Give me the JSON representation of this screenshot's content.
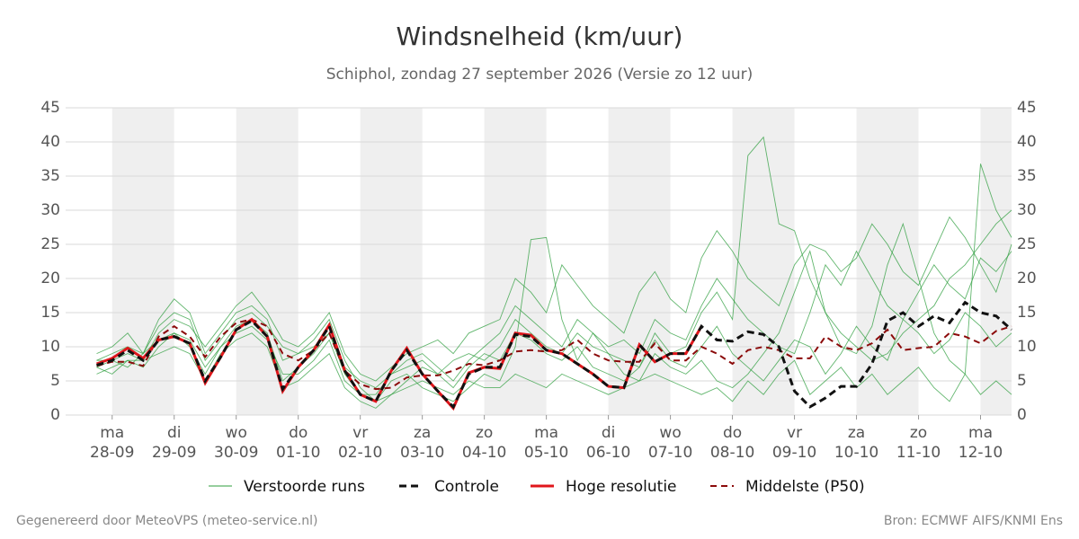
{
  "chart_data": {
    "type": "line",
    "title": "Windsnelheid (km/uur)",
    "subtitle": "Schiphol, zondag 27 september 2026 (Versie zo 12 uur)",
    "x": [
      -0.25,
      0,
      0.25,
      0.5,
      0.75,
      1,
      1.25,
      1.5,
      1.75,
      2,
      2.25,
      2.5,
      2.75,
      3,
      3.25,
      3.5,
      3.75,
      4,
      4.25,
      4.5,
      4.75,
      5,
      5.25,
      5.5,
      5.75,
      6,
      6.25,
      6.5,
      6.75,
      7,
      7.25,
      7.5,
      7.75,
      8,
      8.25,
      8.5,
      8.75,
      9,
      9.25,
      9.5,
      9.75,
      10,
      10.25,
      10.5,
      10.75,
      11,
      11.25,
      11.5,
      11.75,
      12,
      12.25,
      12.5,
      12.75,
      13,
      13.25,
      13.5,
      13.75,
      14,
      14.25,
      14.5
    ],
    "xlim": [
      -0.75,
      14.5
    ],
    "xticks": [
      {
        "value": 0,
        "label": "ma"
      },
      {
        "value": 1,
        "label": "di"
      },
      {
        "value": 2,
        "label": "wo"
      },
      {
        "value": 3,
        "label": "do"
      },
      {
        "value": 4,
        "label": "vr"
      },
      {
        "value": 5,
        "label": "za"
      },
      {
        "value": 6,
        "label": "zo"
      },
      {
        "value": 7,
        "label": "ma"
      },
      {
        "value": 8,
        "label": "di"
      },
      {
        "value": 9,
        "label": "wo"
      },
      {
        "value": 10,
        "label": "do"
      },
      {
        "value": 11,
        "label": "vr"
      },
      {
        "value": 12,
        "label": "za"
      },
      {
        "value": 13,
        "label": "zo"
      },
      {
        "value": 14,
        "label": "ma"
      }
    ],
    "xtick_dates": [
      "28-09",
      "29-09",
      "30-09",
      "01-10",
      "02-10",
      "03-10",
      "04-10",
      "05-10",
      "06-10",
      "07-10",
      "08-10",
      "09-10",
      "10-10",
      "11-10",
      "12-10"
    ],
    "ylim": [
      0,
      45
    ],
    "yticks": [
      0,
      5,
      10,
      15,
      20,
      25,
      30,
      35,
      40,
      45
    ],
    "grid": true,
    "ensemble": {
      "name": "Verstoorde runs",
      "color": "#2e9e3e",
      "runs": [
        [
          8,
          9,
          10,
          9,
          14,
          17,
          15,
          9,
          12,
          15,
          16,
          14,
          8,
          9,
          11,
          14,
          8,
          4,
          2,
          3,
          5,
          7,
          6,
          8,
          9,
          8,
          10,
          14,
          12,
          10,
          9,
          12,
          10,
          9,
          8,
          7,
          12,
          9,
          10,
          15,
          18,
          14,
          38,
          40.7,
          28,
          27,
          20,
          15,
          12,
          10,
          8,
          9,
          12,
          14,
          16,
          20,
          22,
          25,
          28,
          30
        ],
        [
          7,
          6,
          8,
          7,
          10,
          12,
          10,
          6,
          10,
          12,
          13,
          11,
          6,
          6,
          8,
          11,
          5,
          3,
          2,
          5,
          6,
          4,
          3,
          2,
          4,
          6,
          5,
          10,
          25.7,
          26,
          14,
          8,
          12,
          9,
          6,
          5,
          9,
          7,
          6,
          8,
          5,
          4,
          6,
          9,
          12,
          18,
          24,
          15,
          10,
          9,
          13,
          22,
          28,
          20,
          12,
          8,
          6,
          36.8,
          30,
          26
        ],
        [
          9,
          10,
          12,
          9,
          13,
          15,
          14,
          8,
          11,
          14,
          15,
          13,
          10,
          9,
          10,
          12,
          7,
          5,
          4,
          6,
          8,
          9,
          7,
          5,
          8,
          10,
          12,
          16,
          14,
          12,
          10,
          14,
          12,
          10,
          11,
          9,
          14,
          12,
          11,
          16,
          20,
          17,
          14,
          12,
          10,
          9,
          15,
          22,
          19,
          24,
          20,
          16,
          14,
          18,
          22,
          19,
          17,
          23,
          21,
          24
        ],
        [
          6,
          7,
          8,
          8,
          9,
          10,
          9,
          5,
          9,
          11,
          12,
          10,
          4,
          5,
          7,
          9,
          4,
          2,
          1,
          3,
          4,
          5,
          4,
          3,
          5,
          4,
          4,
          6,
          5,
          4,
          6,
          5,
          4,
          3,
          4,
          5,
          6,
          5,
          4,
          3,
          4,
          2,
          5,
          3,
          6,
          8,
          3,
          5,
          7,
          4,
          6,
          3,
          5,
          7,
          4,
          2,
          6,
          3,
          5,
          3
        ],
        [
          8,
          8,
          9,
          8,
          12,
          14,
          13,
          10,
          13,
          16,
          18,
          15,
          11,
          10,
          12,
          15,
          9,
          6,
          5,
          7,
          9,
          10,
          11,
          9,
          12,
          13,
          14,
          20,
          18,
          15,
          22,
          19,
          16,
          14,
          12,
          18,
          21,
          17,
          15,
          23,
          27,
          24,
          20,
          18,
          16,
          22,
          25,
          24,
          21,
          23,
          28,
          25,
          21,
          19,
          24,
          29,
          26,
          22,
          18,
          25
        ],
        [
          7,
          8,
          7,
          9,
          11,
          12,
          11,
          7,
          10,
          13,
          14,
          12,
          5,
          7,
          9,
          12,
          6,
          3,
          3,
          6,
          7,
          8,
          6,
          4,
          7,
          9,
          8,
          12,
          11,
          9,
          8,
          10,
          7,
          6,
          5,
          7,
          11,
          8,
          7,
          10,
          13,
          9,
          7,
          5,
          8,
          11,
          10,
          6,
          9,
          13,
          10,
          8,
          14,
          12,
          9,
          11,
          15,
          13,
          10,
          12
        ]
      ]
    },
    "series": [
      {
        "name": "Controle",
        "color": "#111111",
        "dash": "8 5",
        "width": 3,
        "values": [
          7.3,
          8,
          9.5,
          8,
          11,
          11.5,
          10.5,
          5,
          8.5,
          12.5,
          13.8,
          11.5,
          3.8,
          7,
          9.5,
          13,
          6.5,
          3,
          2,
          6.5,
          9.5,
          6,
          3.5,
          1.2,
          6,
          7,
          7,
          11.8,
          11.5,
          9.5,
          9,
          7.5,
          6,
          4.2,
          4,
          10.3,
          7.8,
          9,
          9,
          13,
          11,
          10.8,
          12.2,
          11.8,
          10,
          3.5,
          1.2,
          2.5,
          4.2,
          4.2,
          7.5,
          13.8,
          15,
          13,
          14.5,
          13.5,
          16.5,
          15,
          14.5,
          12.5
        ]
      },
      {
        "name": "Hoge resolutie",
        "color": "#e0161b",
        "dash": "",
        "width": 3,
        "values": [
          7.5,
          8.3,
          9.8,
          8.3,
          11,
          11.5,
          10.5,
          4.7,
          8.5,
          12.5,
          14,
          11.5,
          3.5,
          7,
          9.5,
          13.2,
          6.5,
          3,
          2,
          6.5,
          9.8,
          6,
          3.5,
          1,
          6.2,
          7,
          6.8,
          12,
          11.7,
          9.5,
          9,
          7.5,
          6,
          4.2,
          4,
          10.3,
          7.8,
          9,
          9,
          13,
          null,
          null,
          null,
          null,
          null,
          null,
          null,
          null,
          null,
          null,
          null,
          null,
          null,
          null,
          null,
          null,
          null,
          null,
          null,
          null
        ]
      },
      {
        "name": "Middelste (P50)",
        "color": "#8b0a0a",
        "dash": "7 5",
        "width": 2,
        "values": [
          7.2,
          7.8,
          7.8,
          7.2,
          11.5,
          13,
          11.5,
          8.5,
          11.5,
          13.5,
          14,
          13,
          9,
          8,
          9.5,
          12,
          6.5,
          4.5,
          3.8,
          4,
          5.5,
          5.8,
          5.8,
          6.5,
          7.5,
          7.3,
          8,
          9.3,
          9.5,
          9.3,
          9.5,
          11,
          9,
          8,
          7.8,
          7.8,
          10.5,
          8,
          8,
          10,
          9,
          7.5,
          9.5,
          10,
          9.5,
          8.3,
          8.3,
          11.5,
          10,
          9.5,
          10.5,
          12.5,
          9.5,
          9.8,
          10,
          12,
          11.5,
          10.5,
          12.3,
          13
        ]
      }
    ],
    "footer_left": "Gegenereerd door MeteoVPS (meteo-service.nl)",
    "footer_right": "Bron: ECMWF AIFS/KNMI Ens"
  }
}
